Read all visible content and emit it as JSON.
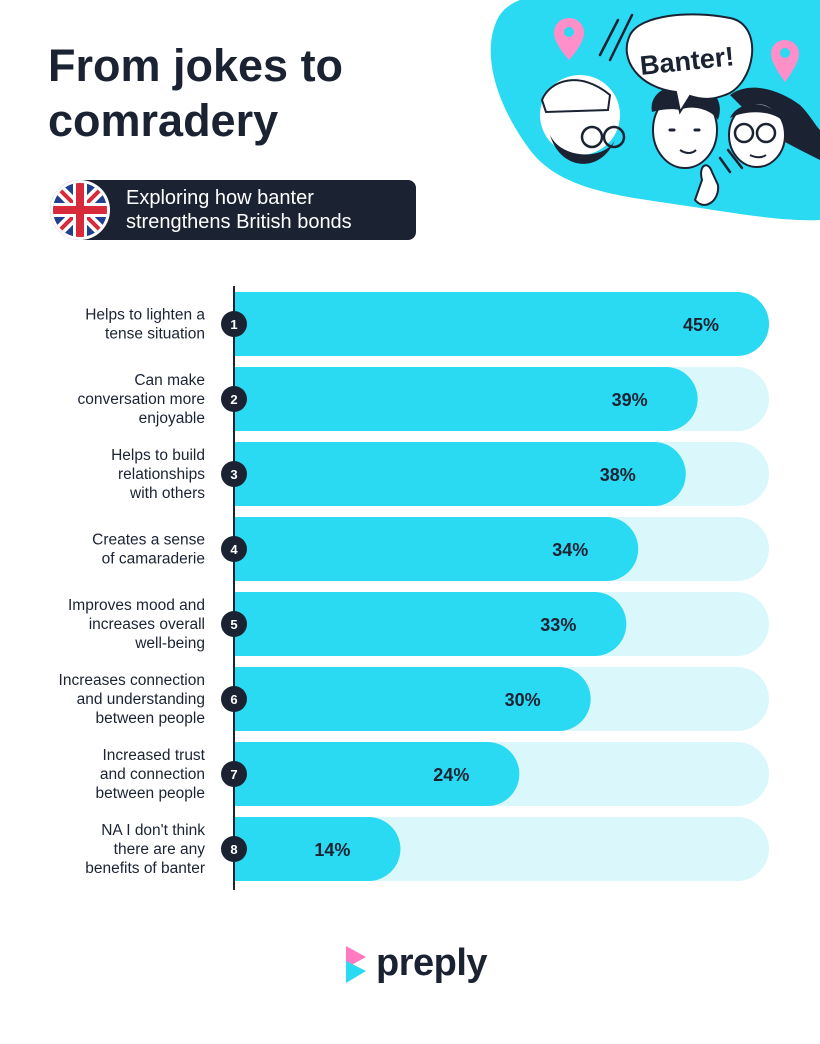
{
  "header": {
    "title": "From jokes to comradery",
    "subtitle": "Exploring how banter strengthens British bonds",
    "speech_bubble": "Banter!"
  },
  "brand": {
    "name": "preply"
  },
  "colors": {
    "bar": "#2ad9f2",
    "track": "#daf8fc",
    "dark": "#1b2333",
    "illustration_bg": "#2ad9f2",
    "pin": "#ff8fc8"
  },
  "icons": [
    "uk-flag-icon",
    "speech-bubble-icon",
    "location-pin-icon",
    "preply-logo-icon"
  ],
  "chart_data": {
    "type": "bar",
    "orientation": "horizontal",
    "categories": [
      "Helps to lighten a tense situation",
      "Can make conversation more enjoyable",
      "Helps to build relationships with others",
      "Creates a sense of camaraderie",
      "Improves mood and increases overall well-being",
      "Increases connection and understanding between people",
      "Increased trust and connection between people",
      "NA I don't think there are any benefits of banter"
    ],
    "label_lines": [
      [
        "Helps to lighten a",
        "tense situation"
      ],
      [
        "Can make",
        "conversation more",
        "enjoyable"
      ],
      [
        "Helps to build",
        "relationships",
        "with others"
      ],
      [
        "Creates a sense",
        "of camaraderie"
      ],
      [
        "Improves mood and",
        "increases overall",
        "well-being"
      ],
      [
        "Increases connection",
        "and understanding",
        "between people"
      ],
      [
        "Increased trust",
        "and connection",
        "between people"
      ],
      [
        "NA I don't think",
        "there are any",
        "benefits of banter"
      ]
    ],
    "ranks": [
      "1",
      "2",
      "3",
      "4",
      "5",
      "6",
      "7",
      "8"
    ],
    "values": [
      45,
      39,
      38,
      34,
      33,
      30,
      24,
      14
    ],
    "value_labels": [
      "45%",
      "39%",
      "38%",
      "34%",
      "33%",
      "30%",
      "24%",
      "14%"
    ],
    "xlim": [
      0,
      45
    ],
    "unit": "%",
    "grid": false,
    "legend": "none"
  }
}
